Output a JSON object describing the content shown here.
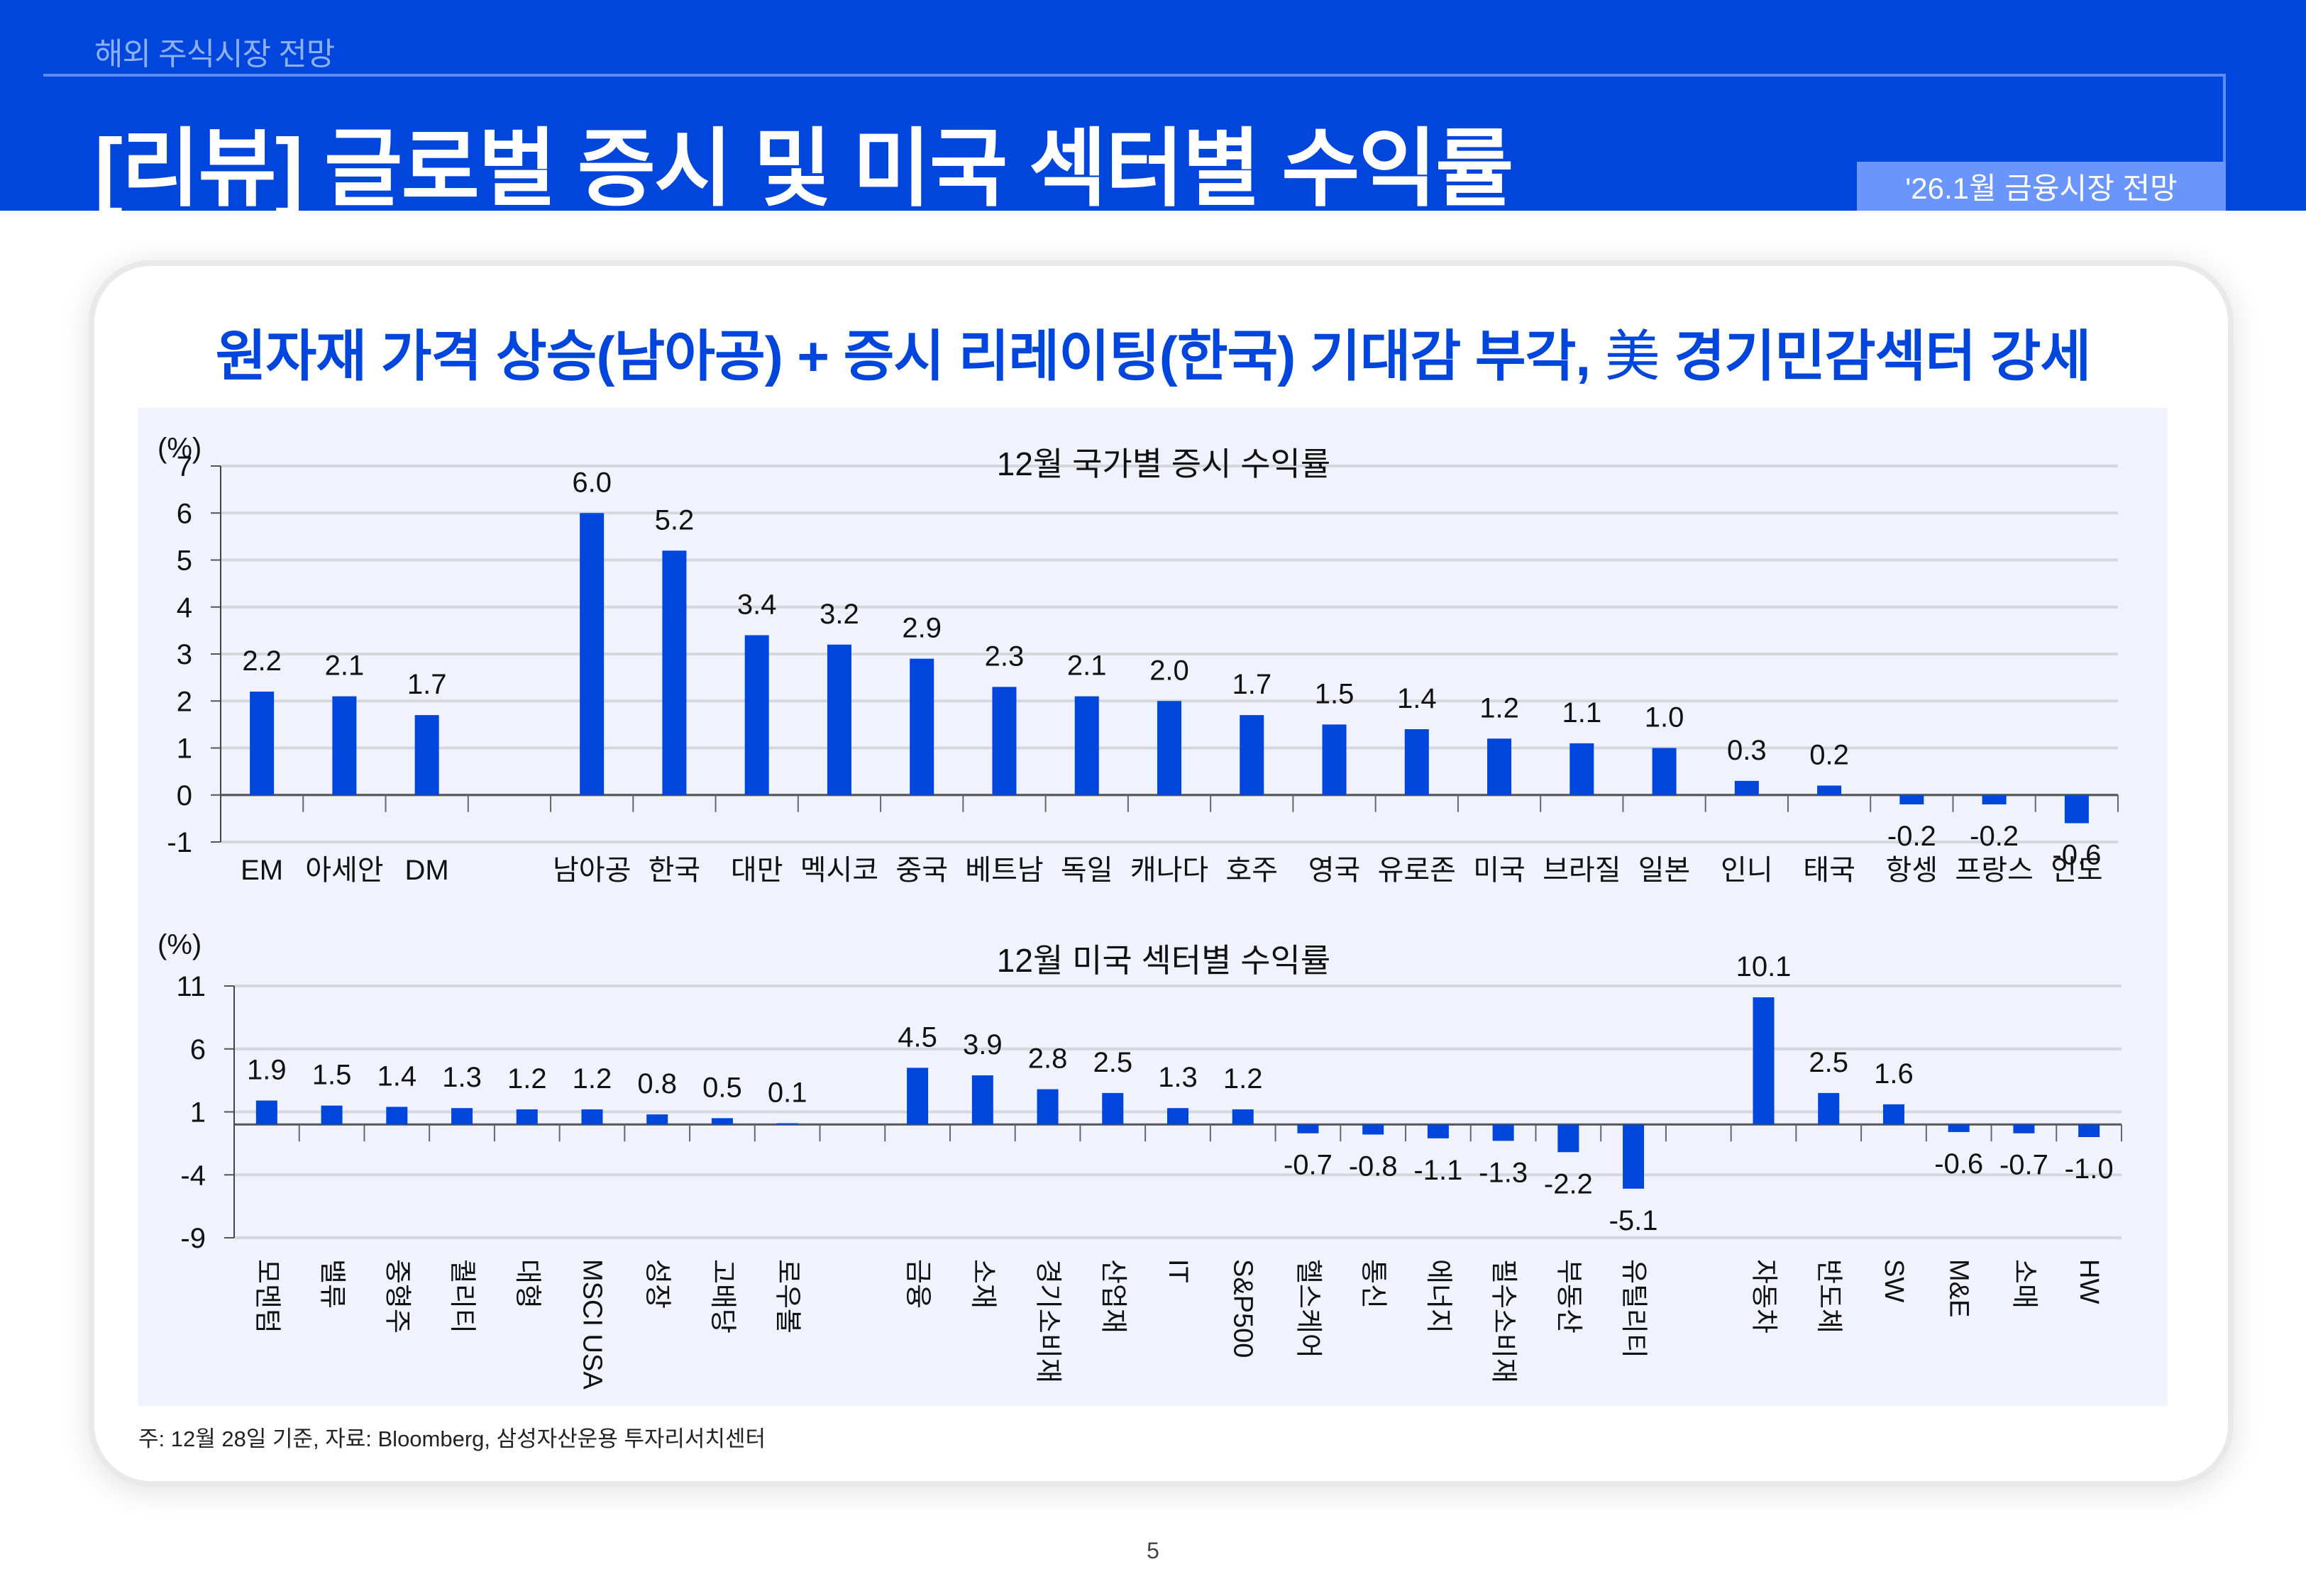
{
  "header": {
    "section": "해외 주식시장 전망",
    "title": "[리뷰] 글로벌 증시 및 미국 섹터별 수익률",
    "badge": "'26.1월 금융시장 전망"
  },
  "headline": {
    "part1": "원자재 가격 상승(남아공) + 증시 리레이팅(한국) 기대감 부각, ",
    "han": "美",
    "part2": " 경기민감섹터 강세"
  },
  "colors": {
    "brand": "#0046DC",
    "bar": "#0046DC",
    "panel": "#F0F3FE",
    "badge": "#6A95FD"
  },
  "chart_data": [
    {
      "type": "bar",
      "title": "12월 국가별 증시 수익률",
      "ylabel": "(%)",
      "xlabel": "",
      "ylim": [
        -1,
        7
      ],
      "yticks": [
        -1,
        0,
        1,
        2,
        3,
        4,
        5,
        6,
        7
      ],
      "grid": true,
      "categories": [
        "EM",
        "아세안",
        "DM",
        "",
        "남아공",
        "한국",
        "대만",
        "멕시코",
        "중국",
        "베트남",
        "독일",
        "캐나다",
        "호주",
        "영국",
        "유로존",
        "미국",
        "브라질",
        "일본",
        "인니",
        "태국",
        "항셍",
        "프랑스",
        "인도"
      ],
      "values": [
        2.2,
        2.1,
        1.7,
        null,
        6.0,
        5.2,
        3.4,
        3.2,
        2.9,
        2.3,
        2.1,
        2.0,
        1.7,
        1.5,
        1.4,
        1.2,
        1.1,
        1.0,
        0.3,
        0.2,
        -0.2,
        -0.2,
        -0.6
      ],
      "labels": [
        "2.2",
        "2.1",
        "1.7",
        "",
        "6.0",
        "5.2",
        "3.4",
        "3.2",
        "2.9",
        "2.3",
        "2.1",
        "2.0",
        "1.7",
        "1.5",
        "1.4",
        "1.2",
        "1.1",
        "1.0",
        "0.3",
        "0.2",
        "-0.2",
        "-0.2",
        "-0.6"
      ]
    },
    {
      "type": "bar",
      "title": "12월 미국 섹터별 수익률",
      "ylabel": "(%)",
      "xlabel": "",
      "ylim": [
        -9,
        11
      ],
      "yticks": [
        -9,
        -4,
        1,
        6,
        11
      ],
      "grid": true,
      "categories": [
        "모멘텀",
        "밸류",
        "중형주",
        "퀄리티",
        "대형",
        "MSCI USA",
        "성장",
        "고배당",
        "로우볼",
        "",
        "금융",
        "소재",
        "경기소비재",
        "산업재",
        "IT",
        "S&P500",
        "헬스케어",
        "통신",
        "에너지",
        "필수소비재",
        "부동산",
        "유틸리티",
        "",
        "자동차",
        "반도체",
        "SW",
        "M&E",
        "소매",
        "HW"
      ],
      "values": [
        1.9,
        1.5,
        1.4,
        1.3,
        1.2,
        1.2,
        0.8,
        0.5,
        0.1,
        null,
        4.5,
        3.9,
        2.8,
        2.5,
        1.3,
        1.2,
        -0.7,
        -0.8,
        -1.1,
        -1.3,
        -2.2,
        -5.1,
        null,
        10.1,
        2.5,
        1.6,
        -0.6,
        -0.7,
        -1.0
      ],
      "labels": [
        "1.9",
        "1.5",
        "1.4",
        "1.3",
        "1.2",
        "1.2",
        "0.8",
        "0.5",
        "0.1",
        "",
        "4.5",
        "3.9",
        "2.8",
        "2.5",
        "1.3",
        "1.2",
        "-0.7",
        "-0.8",
        "-1.1",
        "-1.3",
        "-2.2",
        "-5.1",
        "",
        "10.1",
        "2.5",
        "1.6",
        "-0.6",
        "-0.7",
        "-1.0"
      ]
    }
  ],
  "footnote": "주: 12월 28일 기준, 자료: Bloomberg, 삼성자산운용 투자리서치센터",
  "page_number": "5"
}
